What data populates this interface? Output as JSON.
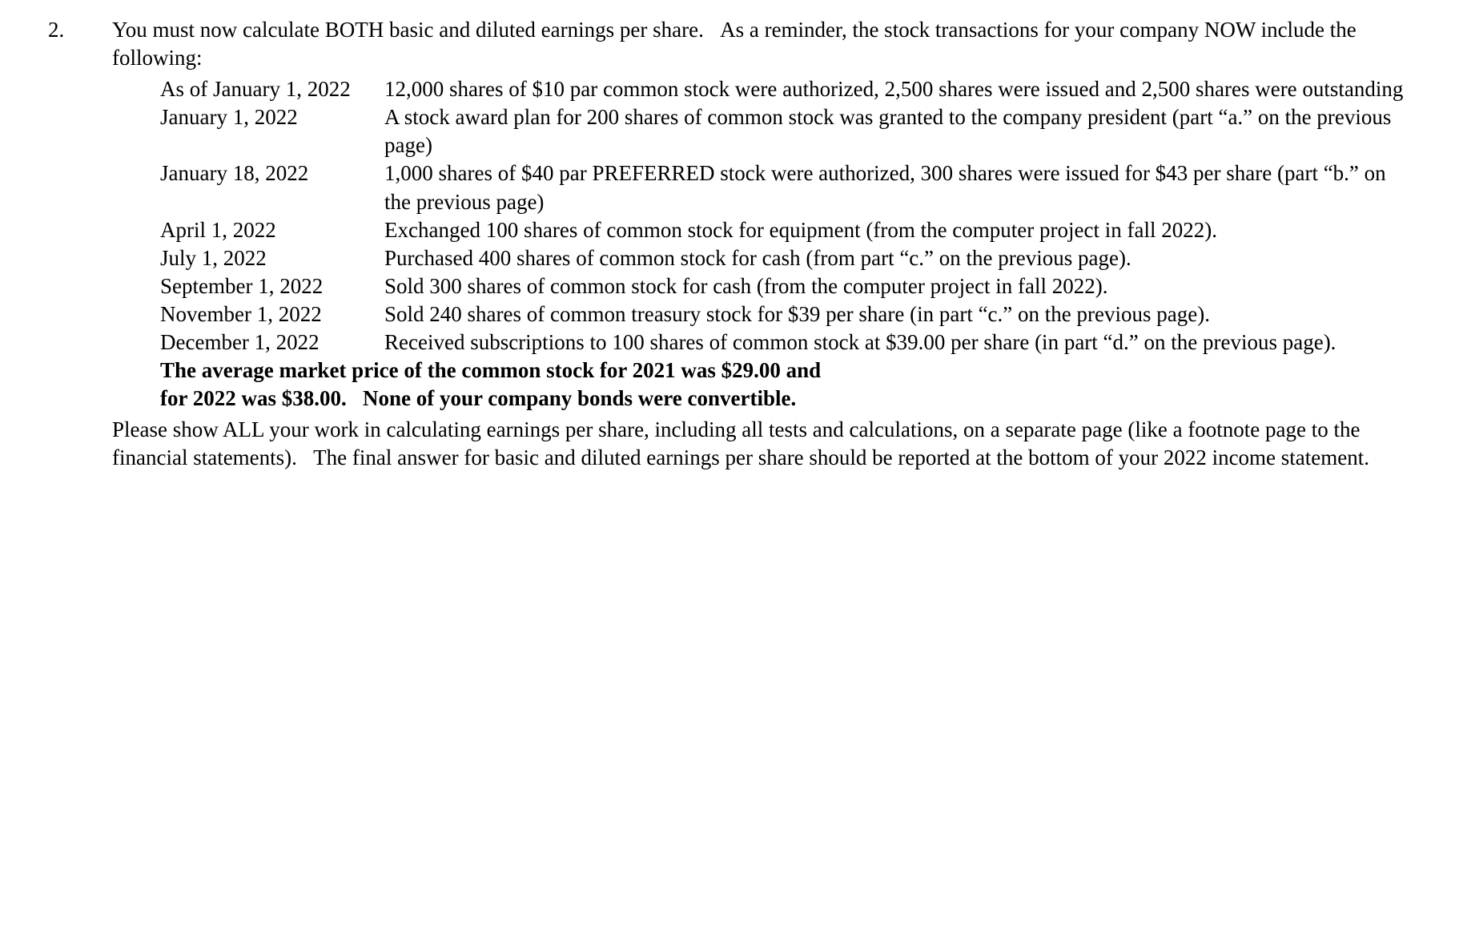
{
  "question_number": "2.",
  "intro": "You must now calculate BOTH basic and diluted earnings per share.   As a reminder, the stock transactions for your company NOW include the following:",
  "events": [
    {
      "date": "As of January 1, 2022",
      "desc": "12,000 shares of $10 par common stock were authorized, 2,500 shares were issued and 2,500 shares were outstanding"
    },
    {
      "date": "January 1, 2022",
      "desc": "A stock award plan for 200 shares of common stock was granted to the company president (part “a.” on the previous page)"
    },
    {
      "date": "January 18, 2022",
      "desc": "1,000 shares of $40 par PREFERRED stock were authorized, 300 shares were issued for $43 per share (part “b.” on the previous page)"
    },
    {
      "date": "April 1, 2022",
      "desc": "Exchanged 100 shares of common stock for equipment (from the computer project in fall 2022)."
    },
    {
      "date": "July 1, 2022",
      "desc": "Purchased 400 shares of common stock for cash (from part “c.” on the previous page)."
    },
    {
      "date": "September 1, 2022",
      "desc": "Sold 300 shares of common stock for cash (from the computer project in fall 2022)."
    },
    {
      "date": "November 1, 2022",
      "desc": "Sold 240 shares of common treasury stock for $39 per share (in part “c.” on the previous page)."
    },
    {
      "date": "December 1, 2022",
      "desc": "Received subscriptions to 100 shares of common stock at $39.00 per share (in part “d.” on the previous page)."
    }
  ],
  "bold_note_line1": "The average market price of the common stock for 2021 was $29.00 and",
  "bold_note_line2": "for 2022 was $38.00.   None of your company bonds were convertible.",
  "closing": "Please show ALL your work in calculating earnings per share, including all tests and calculations, on a separate page (like a footnote page to the financial statements).   The final answer for basic and diluted earnings per share should be reported at the bottom of your 2022 income statement."
}
